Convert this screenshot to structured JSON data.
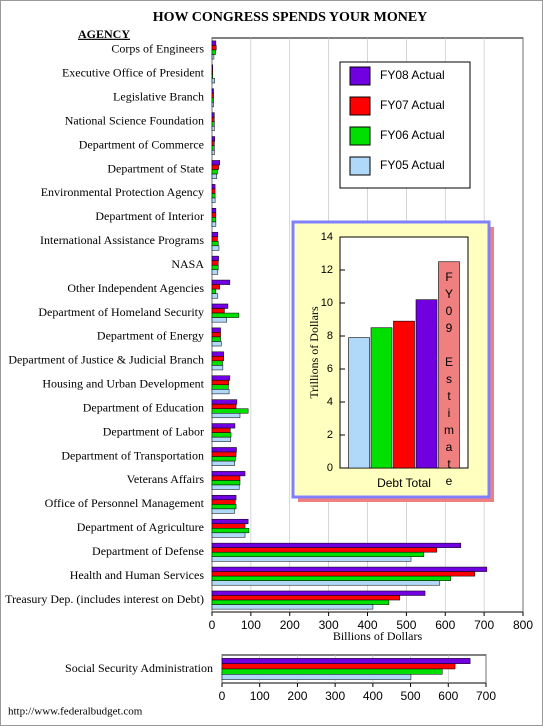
{
  "chart_data": [
    {
      "type": "bar",
      "orientation": "horizontal",
      "title": "HOW CONGRESS SPENDS YOUR MONEY",
      "category_header": "AGENCY",
      "xlabel": "Billions of Dollars",
      "categories": [
        "Corps of Engineers",
        "Executive Office of President",
        "Legislative Branch",
        "National Science Foundation",
        "Department of Commerce",
        "Department of State",
        "Environmental Protection Agency",
        "Department of Interior",
        "International Assistance Programs",
        "NASA",
        "Other Independent Agencies",
        "Department of Homeland Security",
        "Department of Energy",
        "Department of Justice & Judicial Branch",
        "Housing and Urban Development",
        "Department of Education",
        "Department of Labor",
        "Department of Transportation",
        "Veterans Affairs",
        "Office of Personnel Management",
        "Department of Agriculture",
        "Department of Defense",
        "Health and Human Services",
        "Treasury Dep. (includes interest on Debt)"
      ],
      "series": [
        {
          "name": "FY08 Actual",
          "color": "#7000e0",
          "values": [
            10,
            2,
            4,
            6,
            7,
            20,
            8,
            10,
            15,
            17,
            46,
            41,
            22,
            30,
            46,
            64,
            59,
            63,
            85,
            62,
            93,
            640,
            707,
            548
          ]
        },
        {
          "name": "FY07 Actual",
          "color": "#ff0000",
          "values": [
            11,
            2,
            4,
            6,
            6,
            17,
            8,
            10,
            14,
            16,
            20,
            32,
            22,
            30,
            43,
            62,
            47,
            62,
            72,
            60,
            85,
            578,
            676,
            483
          ]
        },
        {
          "name": "FY06 Actual",
          "color": "#00e000",
          "values": [
            9,
            2,
            4,
            6,
            6,
            14,
            8,
            10,
            16,
            16,
            10,
            69,
            22,
            27,
            42,
            93,
            49,
            60,
            72,
            62,
            95,
            545,
            614,
            455
          ]
        },
        {
          "name": "FY05 Actual",
          "color": "#b0d8f8",
          "values": [
            5,
            7,
            4,
            6,
            6,
            12,
            8,
            10,
            18,
            15,
            15,
            38,
            24,
            28,
            44,
            72,
            48,
            58,
            70,
            58,
            85,
            512,
            586,
            414
          ]
        }
      ],
      "xlim": [
        0,
        800
      ],
      "xticks": [
        0,
        100,
        200,
        300,
        400,
        500,
        600,
        700,
        800
      ],
      "grid": true,
      "legend": "upper right"
    },
    {
      "type": "bar",
      "orientation": "vertical",
      "categories": [
        "Debt Total"
      ],
      "ylabel": "Trillions of Dollars",
      "series": [
        {
          "color": "#b0d8f8",
          "values": [
            7.9
          ]
        },
        {
          "color": "#00e000",
          "values": [
            8.5
          ]
        },
        {
          "color": "#ff0000",
          "values": [
            8.9
          ]
        },
        {
          "color": "#7000e0",
          "values": [
            10.2
          ]
        },
        {
          "name": "FY09 Estimate",
          "color": "#f08080",
          "values": [
            12.5
          ]
        }
      ],
      "ylim": [
        0,
        14
      ],
      "yticks": [
        0,
        2,
        4,
        6,
        8,
        10,
        12,
        14
      ]
    },
    {
      "type": "bar",
      "orientation": "horizontal",
      "categories": [
        "Social Security Administration"
      ],
      "series": [
        {
          "color": "#7000e0",
          "values": [
            658
          ]
        },
        {
          "color": "#ff0000",
          "values": [
            618
          ]
        },
        {
          "color": "#00e000",
          "values": [
            584
          ]
        },
        {
          "color": "#b0d8f8",
          "values": [
            501
          ]
        }
      ],
      "xlim": [
        0,
        700
      ],
      "xticks": [
        0,
        100,
        200,
        300,
        400,
        500,
        600,
        700
      ],
      "grid": true
    }
  ],
  "footer": "http://www.federalbudget.com"
}
